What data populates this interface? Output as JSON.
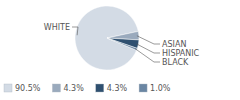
{
  "chart_data": {
    "type": "pie",
    "categories": [
      "WHITE",
      "ASIAN",
      "HISPANIC",
      "BLACK"
    ],
    "values": [
      90.5,
      4.3,
      4.3,
      1.0
    ],
    "value_labels": [
      "90.5%",
      "4.3%",
      "4.3%",
      "1.0%"
    ],
    "colors": [
      "#d3dbe5",
      "#9aaabd",
      "#2f5070",
      "#6a86a3"
    ],
    "data_labels": true
  }
}
